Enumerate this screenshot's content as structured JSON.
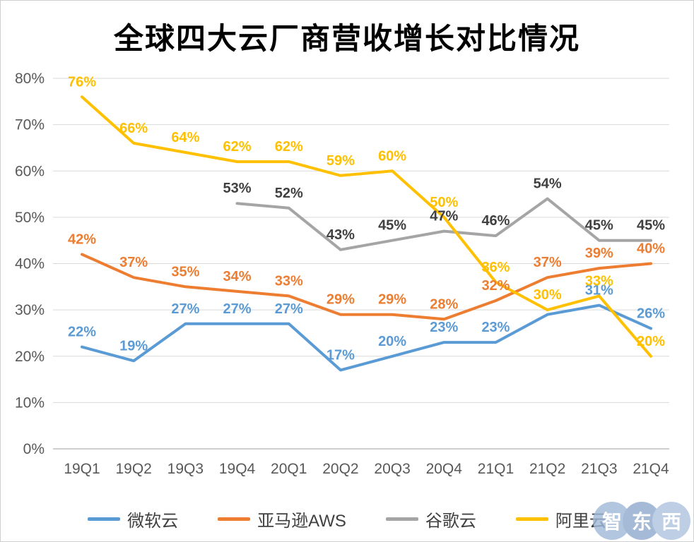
{
  "title": "全球四大云厂商营收增长对比情况",
  "watermark": {
    "chars": [
      "智",
      "东",
      "西"
    ],
    "colors": [
      "#9FB8D8",
      "#8FA9CC",
      "#AEC2DE"
    ]
  },
  "chart_data": {
    "type": "line",
    "title": "全球四大云厂商营收增长对比情况",
    "categories": [
      "19Q1",
      "19Q2",
      "19Q3",
      "19Q4",
      "20Q1",
      "20Q2",
      "20Q3",
      "20Q4",
      "21Q1",
      "21Q2",
      "21Q3",
      "21Q4"
    ],
    "ylim": [
      0,
      80
    ],
    "ytick_step": 10,
    "ytick_labels": [
      "0%",
      "10%",
      "20%",
      "30%",
      "40%",
      "50%",
      "60%",
      "70%",
      "80%"
    ],
    "grid": true,
    "legend_position": "bottom",
    "series": [
      {
        "id": "microsoft-cloud",
        "name": "微软云",
        "color": "#5B9BD5",
        "label_color": "#5B9BD5",
        "values": [
          22,
          19,
          27,
          27,
          27,
          17,
          20,
          23,
          23,
          29,
          31,
          26
        ],
        "labels": [
          "22%",
          "19%",
          "27%",
          "27%",
          "27%",
          "17%",
          "20%",
          "23%",
          "23%",
          "",
          "31%",
          "26%"
        ]
      },
      {
        "id": "amazon-aws",
        "name": "亚马逊AWS",
        "color": "#ED7D31",
        "label_color": "#ED7D31",
        "values": [
          42,
          37,
          35,
          34,
          33,
          29,
          29,
          28,
          32,
          37,
          39,
          40
        ],
        "labels": [
          "42%",
          "37%",
          "35%",
          "34%",
          "33%",
          "29%",
          "29%",
          "28%",
          "32%",
          "37%",
          "39%",
          "40%"
        ]
      },
      {
        "id": "google-cloud",
        "name": "谷歌云",
        "color": "#A5A5A5",
        "label_color": "#404040",
        "values": [
          null,
          null,
          null,
          53,
          52,
          43,
          45,
          47,
          46,
          54,
          45,
          45
        ],
        "labels": [
          "",
          "",
          "",
          "53%",
          "52%",
          "43%",
          "45%",
          "47%",
          "46%",
          "54%",
          "45%",
          "45%"
        ]
      },
      {
        "id": "alibaba-cloud",
        "name": "阿里云",
        "color": "#FFC000",
        "label_color": "#FFC000",
        "values": [
          76,
          66,
          64,
          62,
          62,
          59,
          60,
          50,
          36,
          30,
          33,
          20
        ],
        "labels": [
          "76%",
          "66%",
          "64%",
          "62%",
          "62%",
          "59%",
          "60%",
          "50%",
          "36%",
          "30%",
          "33%",
          "20%"
        ]
      }
    ]
  }
}
